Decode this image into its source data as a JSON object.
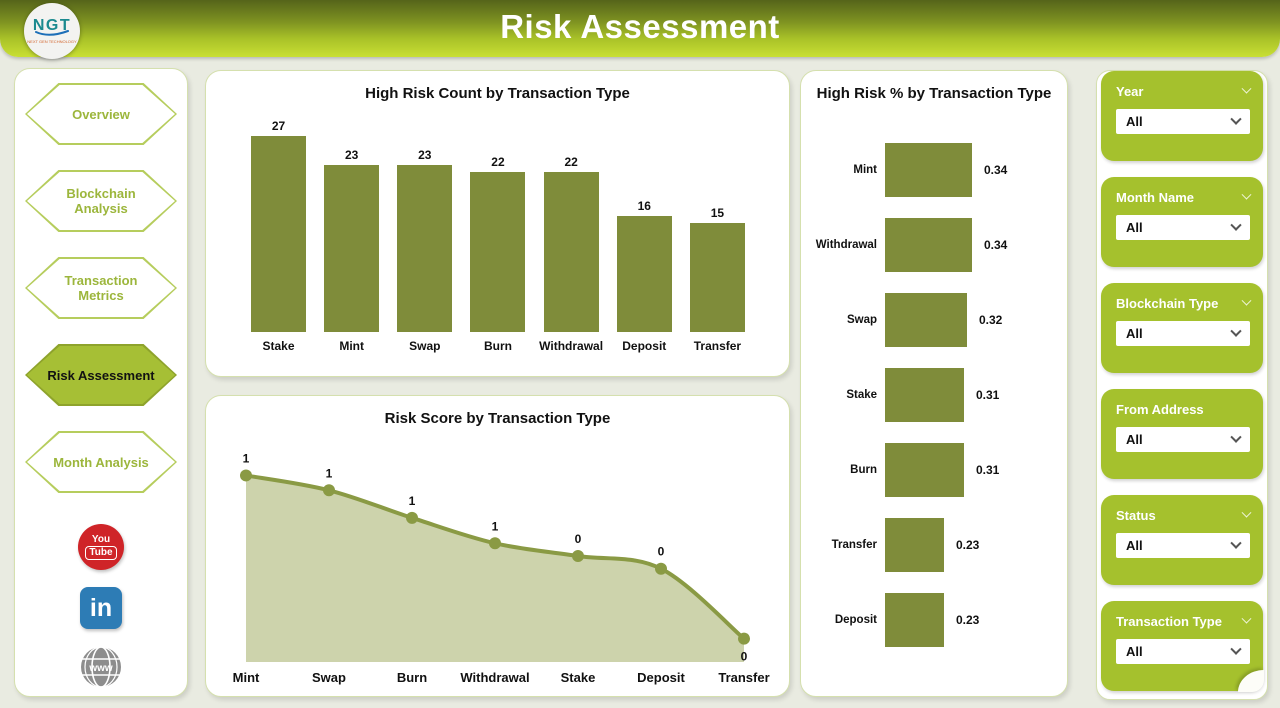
{
  "header": {
    "title": "Risk Assessment",
    "logo_text": "NGT",
    "logo_tagline": "NEXT GEN TECHNOLOGY"
  },
  "sidebar": {
    "items": [
      {
        "label": "Overview",
        "active": false
      },
      {
        "label": "Blockchain Analysis",
        "active": false
      },
      {
        "label": "Transaction Metrics",
        "active": false
      },
      {
        "label": "Risk Assessment",
        "active": true
      },
      {
        "label": "Month Analysis",
        "active": false
      }
    ],
    "social": [
      {
        "name": "youtube",
        "lines": [
          "You",
          "Tube"
        ]
      },
      {
        "name": "linkedin",
        "label": "in"
      },
      {
        "name": "website",
        "label": "www"
      }
    ]
  },
  "filters": [
    {
      "label": "Year",
      "value": "All",
      "header_chevron": true
    },
    {
      "label": "Month Name",
      "value": "All",
      "header_chevron": true
    },
    {
      "label": "Blockchain Type",
      "value": "All",
      "header_chevron": true
    },
    {
      "label": "From Address",
      "value": "All",
      "header_chevron": false
    },
    {
      "label": "Status",
      "value": "All",
      "header_chevron": true
    },
    {
      "label": "Transaction Type",
      "value": "All",
      "header_chevron": true
    }
  ],
  "chart_data": [
    {
      "id": "high_risk_count",
      "type": "bar",
      "title": "High Risk Count by Transaction Type",
      "categories": [
        "Stake",
        "Mint",
        "Swap",
        "Burn",
        "Withdrawal",
        "Deposit",
        "Transfer"
      ],
      "values": [
        27,
        23,
        23,
        22,
        22,
        16,
        15
      ],
      "ylim": [
        0,
        27
      ],
      "grid": false,
      "data_labels": true,
      "bar_color": "#7f8c3a"
    },
    {
      "id": "risk_score",
      "type": "area",
      "title": "Risk Score by Transaction Type",
      "categories": [
        "Mint",
        "Swap",
        "Burn",
        "Withdrawal",
        "Stake",
        "Deposit",
        "Transfer"
      ],
      "values": [
        1,
        1,
        1,
        1,
        0,
        0,
        0
      ],
      "values_est": [
        0.88,
        0.81,
        0.68,
        0.56,
        0.5,
        0.44,
        0.11
      ],
      "ylim": [
        0,
        1
      ],
      "grid": false,
      "data_labels": true,
      "line_color": "#8a9a44",
      "fill_color": "#cdd3ac",
      "marker": "circle"
    },
    {
      "id": "high_risk_pct",
      "type": "bar_horizontal",
      "title": "High Risk % by Transaction Type",
      "categories": [
        "Mint",
        "Withdrawal",
        "Swap",
        "Stake",
        "Burn",
        "Transfer",
        "Deposit"
      ],
      "values": [
        0.34,
        0.34,
        0.32,
        0.31,
        0.31,
        0.23,
        0.23
      ],
      "value_labels": [
        "0.34",
        "0.34",
        "0.32",
        "0.31",
        "0.31",
        "0.23",
        "0.23"
      ],
      "xlim": [
        0,
        0.4
      ],
      "grid": false,
      "data_labels": true,
      "bar_color": "#7f8c3a"
    }
  ],
  "colors": {
    "header_gradient_top": "#55641a",
    "header_gradient_bottom": "#c9df34",
    "olive_bar": "#7f8c3a",
    "area_line": "#8a9a44",
    "area_fill": "#cdd3ac",
    "filter_green": "#a5c12d",
    "active_nav_green": "#a6bf35",
    "nav_text_green": "#9cb63c",
    "youtube_red": "#cf2428",
    "linkedin_blue": "#2d7cb5",
    "globe_gray": "#8d8d8d",
    "page_background": "#e9ebe1"
  }
}
